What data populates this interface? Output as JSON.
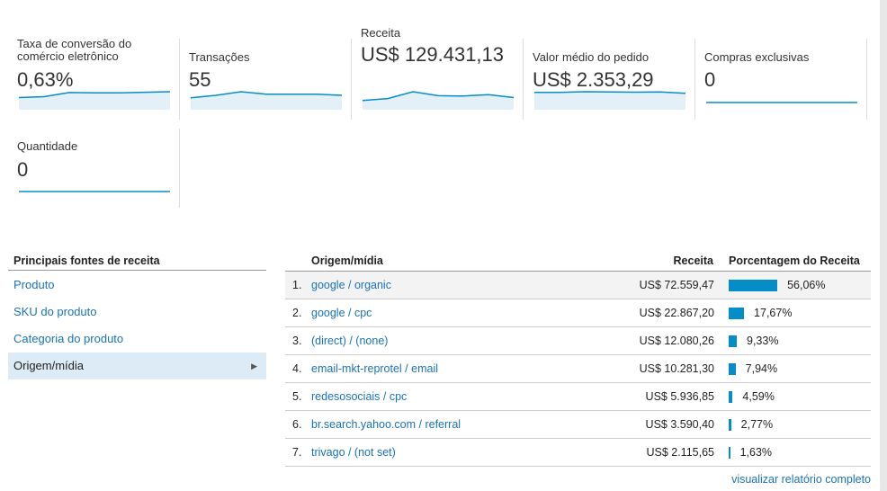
{
  "metrics": [
    {
      "label": "Taxa de conversão do comércio eletrônico",
      "value": "0,63%",
      "trend": [
        0.3,
        0.35,
        0.6,
        0.58,
        0.58,
        0.62,
        0.65
      ]
    },
    {
      "label": "Transações",
      "value": "55",
      "trend": [
        4,
        6,
        9,
        7,
        7,
        7,
        6
      ]
    },
    {
      "label": "Receita",
      "value": "US$ 129.431,13",
      "trend": [
        10,
        20,
        55,
        35,
        33,
        40,
        25
      ]
    },
    {
      "label": "Valor médio do pedido",
      "value": "US$ 2.353,29",
      "trend": [
        2300,
        2300,
        2450,
        2380,
        2340,
        2400,
        2100
      ]
    },
    {
      "label": "Compras exclusivas",
      "value": "0",
      "trend": [
        0,
        0,
        0,
        0,
        0,
        0,
        0
      ]
    },
    {
      "label": "Quantidade",
      "value": "0",
      "trend": [
        0,
        0,
        0,
        0,
        0,
        0,
        0
      ]
    }
  ],
  "sidebar": {
    "title": "Principais fontes de receita",
    "items": [
      "Produto",
      "SKU do produto",
      "Categoria do produto",
      "Origem/mídia"
    ]
  },
  "table": {
    "headers": [
      "Origem/mídia",
      "Receita",
      "Porcentagem do Receita"
    ],
    "rows": [
      {
        "rank": "1.",
        "source": "google / organic",
        "revenue": "US$ 72.559,47",
        "percent": 56.06,
        "percent_label": "56,06%"
      },
      {
        "rank": "2.",
        "source": "google / cpc",
        "revenue": "US$ 22.867,20",
        "percent": 17.67,
        "percent_label": "17,67%"
      },
      {
        "rank": "3.",
        "source": "(direct) / (none)",
        "revenue": "US$ 12.080,26",
        "percent": 9.33,
        "percent_label": "9,33%"
      },
      {
        "rank": "4.",
        "source": "email-mkt-reprotel / email",
        "revenue": "US$ 10.281,30",
        "percent": 7.94,
        "percent_label": "7,94%"
      },
      {
        "rank": "5.",
        "source": "redesosociais / cpc",
        "revenue": "US$ 5.936,85",
        "percent": 4.59,
        "percent_label": "4,59%"
      },
      {
        "rank": "6.",
        "source": "br.search.yahoo.com / referral",
        "revenue": "US$ 3.590,40",
        "percent": 2.77,
        "percent_label": "2,77%"
      },
      {
        "rank": "7.",
        "source": "trivago / (not set)",
        "revenue": "US$ 2.115,65",
        "percent": 1.63,
        "percent_label": "1,63%"
      }
    ],
    "footer_link": "visualizar relatório completo"
  }
}
